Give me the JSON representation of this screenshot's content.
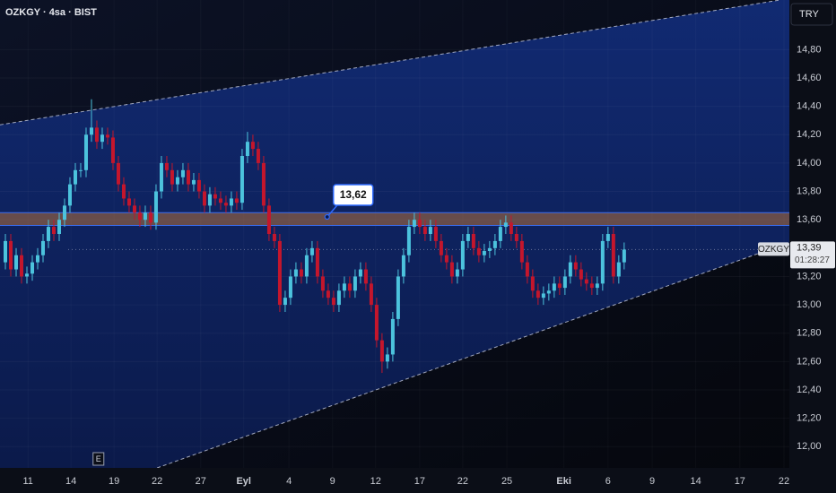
{
  "chart_data": {
    "type": "candlestick",
    "title": "OZKGY · 4sa · BIST",
    "currency": "TRY",
    "symbol_tag": "OZKGY",
    "countdown": "01:28:27",
    "event_marker": "E",
    "up_color": "#4cc3dd",
    "down_color": "#c4162c",
    "xlim": [
      0,
      146.7
    ],
    "ylim": [
      11.85,
      15.15
    ],
    "grid": true,
    "yticks": [
      {
        "value": 14.8,
        "label": "14,80"
      },
      {
        "value": 14.6,
        "label": "14,60"
      },
      {
        "value": 14.4,
        "label": "14,40"
      },
      {
        "value": 14.2,
        "label": "14,20"
      },
      {
        "value": 14.0,
        "label": "14,00"
      },
      {
        "value": 13.8,
        "label": "13,80"
      },
      {
        "value": 13.6,
        "label": "13,60"
      },
      {
        "value": 13.2,
        "label": "13,20"
      },
      {
        "value": 13.0,
        "label": "13,00"
      },
      {
        "value": 12.8,
        "label": "12,80"
      },
      {
        "value": 12.6,
        "label": "12,60"
      },
      {
        "value": 12.4,
        "label": "12,40"
      },
      {
        "value": 12.2,
        "label": "12,20"
      },
      {
        "value": 12.0,
        "label": "12,00"
      }
    ],
    "xticks": [
      {
        "value": 5.2,
        "label": "11"
      },
      {
        "value": 13.2,
        "label": "14"
      },
      {
        "value": 21.2,
        "label": "19"
      },
      {
        "value": 29.2,
        "label": "22"
      },
      {
        "value": 37.3,
        "label": "27"
      },
      {
        "value": 45.3,
        "label": "Eyl"
      },
      {
        "value": 53.7,
        "label": "4"
      },
      {
        "value": 61.8,
        "label": "9"
      },
      {
        "value": 69.8,
        "label": "12"
      },
      {
        "value": 78,
        "label": "17"
      },
      {
        "value": 86,
        "label": "22"
      },
      {
        "value": 94.2,
        "label": "25"
      },
      {
        "value": 104.8,
        "label": "Eki"
      },
      {
        "value": 113,
        "label": "6"
      },
      {
        "value": 121.2,
        "label": "9"
      },
      {
        "value": 129.3,
        "label": "14"
      },
      {
        "value": 137.5,
        "label": "17"
      },
      {
        "value": 145.7,
        "label": "22"
      }
    ],
    "x": [
      1,
      2,
      3,
      4,
      5,
      6,
      7,
      8,
      9,
      10,
      11,
      12,
      13,
      14,
      15,
      16,
      17,
      18,
      19,
      20,
      21,
      22,
      23,
      24,
      25,
      26,
      27,
      28,
      29,
      30,
      31,
      32,
      33,
      34,
      35,
      36,
      37,
      38,
      39,
      40,
      41,
      42,
      43,
      44,
      45,
      46,
      47,
      48,
      49,
      50,
      51,
      52,
      53,
      54,
      55,
      56,
      57,
      58,
      59,
      60,
      61,
      62,
      63,
      64,
      65,
      66,
      67,
      68,
      69,
      70,
      71,
      72,
      73,
      74,
      75,
      76,
      77,
      78,
      79,
      80,
      81,
      82,
      83,
      84,
      85,
      86,
      87,
      88,
      89,
      90,
      91,
      92,
      93,
      94,
      95,
      96,
      97,
      98,
      99,
      100,
      101,
      102,
      103,
      104,
      105,
      106,
      107,
      108,
      109,
      110,
      111,
      112,
      113,
      114,
      115,
      116
    ],
    "open": [
      13.3,
      13.45,
      13.25,
      13.35,
      13.2,
      13.22,
      13.3,
      13.35,
      13.45,
      13.55,
      13.5,
      13.6,
      13.7,
      13.85,
      13.95,
      13.95,
      14.2,
      14.25,
      14.15,
      14.2,
      14.18,
      14.0,
      13.85,
      13.75,
      13.7,
      13.65,
      13.6,
      13.65,
      13.58,
      13.8,
      14.0,
      13.95,
      13.85,
      13.9,
      13.95,
      13.85,
      13.88,
      13.8,
      13.7,
      13.78,
      13.75,
      13.72,
      13.7,
      13.75,
      13.72,
      14.05,
      14.15,
      14.1,
      14.0,
      13.7,
      13.5,
      13.45,
      13.0,
      13.05,
      13.2,
      13.25,
      13.2,
      13.35,
      13.4,
      13.2,
      13.1,
      13.05,
      13.0,
      13.1,
      13.15,
      13.1,
      13.2,
      13.25,
      13.15,
      13.0,
      12.75,
      12.6,
      12.65,
      12.9,
      13.2,
      13.35,
      13.55,
      13.6,
      13.55,
      13.5,
      13.55,
      13.45,
      13.35,
      13.3,
      13.2,
      13.25,
      13.45,
      13.5,
      13.4,
      13.35,
      13.38,
      13.4,
      13.45,
      13.55,
      13.58,
      13.5,
      13.45,
      13.3,
      13.2,
      13.1,
      13.05,
      13.08,
      13.1,
      13.15,
      13.12,
      13.2,
      13.3,
      13.25,
      13.18,
      13.15,
      13.12,
      13.15,
      13.45,
      13.5,
      13.2,
      13.3
    ],
    "high": [
      13.5,
      13.5,
      13.4,
      13.4,
      13.27,
      13.35,
      13.4,
      13.5,
      13.6,
      13.6,
      13.65,
      13.75,
      13.9,
      14.0,
      14.0,
      14.25,
      14.45,
      14.3,
      14.25,
      14.25,
      14.23,
      14.05,
      13.9,
      13.8,
      13.75,
      13.7,
      13.7,
      13.7,
      13.85,
      14.05,
      14.05,
      14.0,
      13.95,
      14.0,
      14.0,
      13.93,
      13.93,
      13.85,
      13.83,
      13.83,
      13.8,
      13.77,
      13.8,
      13.8,
      14.1,
      14.22,
      14.2,
      14.15,
      14.05,
      13.75,
      13.55,
      13.5,
      13.1,
      13.25,
      13.3,
      13.3,
      13.4,
      13.45,
      13.45,
      13.25,
      13.15,
      13.1,
      13.15,
      13.2,
      13.2,
      13.25,
      13.3,
      13.3,
      13.2,
      13.05,
      12.8,
      12.7,
      12.95,
      13.25,
      13.4,
      13.6,
      13.65,
      13.65,
      13.6,
      13.6,
      13.6,
      13.5,
      13.4,
      13.35,
      13.3,
      13.5,
      13.55,
      13.55,
      13.45,
      13.43,
      13.45,
      13.5,
      13.6,
      13.63,
      13.63,
      13.55,
      13.5,
      13.35,
      13.25,
      13.15,
      13.13,
      13.15,
      13.2,
      13.2,
      13.25,
      13.35,
      13.35,
      13.3,
      13.23,
      13.2,
      13.2,
      13.5,
      13.55,
      13.55,
      13.35,
      13.44
    ],
    "low": [
      13.25,
      13.2,
      13.2,
      13.15,
      13.15,
      13.17,
      13.25,
      13.3,
      13.4,
      13.45,
      13.45,
      13.55,
      13.65,
      13.8,
      13.9,
      13.9,
      14.15,
      14.1,
      14.1,
      14.13,
      13.95,
      13.8,
      13.7,
      13.65,
      13.6,
      13.55,
      13.55,
      13.53,
      13.53,
      13.75,
      13.9,
      13.8,
      13.8,
      13.85,
      13.8,
      13.8,
      13.75,
      13.65,
      13.65,
      13.7,
      13.67,
      13.65,
      13.65,
      13.67,
      13.67,
      14.0,
      14.05,
      13.95,
      13.65,
      13.45,
      13.4,
      12.95,
      12.95,
      13.0,
      13.15,
      13.15,
      13.15,
      13.3,
      13.15,
      13.05,
      13.0,
      12.95,
      12.95,
      13.05,
      13.05,
      13.05,
      13.15,
      13.1,
      12.95,
      12.7,
      12.52,
      12.55,
      12.6,
      12.85,
      13.15,
      13.3,
      13.5,
      13.5,
      13.45,
      13.45,
      13.4,
      13.3,
      13.25,
      13.15,
      13.15,
      13.2,
      13.4,
      13.35,
      13.3,
      13.3,
      13.33,
      13.35,
      13.4,
      13.5,
      13.45,
      13.4,
      13.25,
      13.15,
      13.05,
      13.0,
      13.0,
      13.03,
      13.05,
      13.07,
      13.07,
      13.15,
      13.2,
      13.13,
      13.1,
      13.07,
      13.07,
      13.1,
      13.4,
      13.15,
      13.15,
      13.25
    ],
    "close": [
      13.45,
      13.25,
      13.35,
      13.2,
      13.22,
      13.3,
      13.35,
      13.45,
      13.55,
      13.5,
      13.6,
      13.7,
      13.85,
      13.95,
      13.95,
      14.2,
      14.25,
      14.15,
      14.2,
      14.18,
      14.0,
      13.85,
      13.75,
      13.7,
      13.65,
      13.6,
      13.65,
      13.58,
      13.8,
      14.0,
      13.95,
      13.85,
      13.9,
      13.95,
      13.85,
      13.88,
      13.8,
      13.7,
      13.78,
      13.75,
      13.72,
      13.7,
      13.75,
      13.72,
      14.05,
      14.15,
      14.1,
      14.0,
      13.7,
      13.5,
      13.45,
      13.0,
      13.05,
      13.2,
      13.25,
      13.2,
      13.35,
      13.4,
      13.2,
      13.1,
      13.05,
      13.0,
      13.1,
      13.15,
      13.1,
      13.2,
      13.25,
      13.15,
      13.0,
      12.75,
      12.6,
      12.65,
      12.9,
      13.2,
      13.35,
      13.55,
      13.6,
      13.55,
      13.5,
      13.55,
      13.45,
      13.35,
      13.3,
      13.2,
      13.25,
      13.45,
      13.5,
      13.4,
      13.35,
      13.38,
      13.4,
      13.45,
      13.55,
      13.58,
      13.5,
      13.45,
      13.3,
      13.2,
      13.1,
      13.05,
      13.08,
      13.1,
      13.15,
      13.12,
      13.2,
      13.3,
      13.25,
      13.18,
      13.15,
      13.12,
      13.15,
      13.45,
      13.5,
      13.2,
      13.3,
      13.39
    ],
    "last_price": {
      "value": 13.39,
      "label": "13,39"
    },
    "zone": {
      "low": 13.56,
      "high": 13.65,
      "color": "#b0703a"
    },
    "annotation": {
      "x": 60.8,
      "value": 13.62,
      "label": "13,62"
    },
    "channel": {
      "upper": [
        [
          0,
          14.27
        ],
        [
          145,
          15.15
        ]
      ],
      "lower": [
        [
          29.2,
          11.85
        ],
        [
          146.7,
          13.44
        ]
      ]
    },
    "event_x": 18.3
  }
}
